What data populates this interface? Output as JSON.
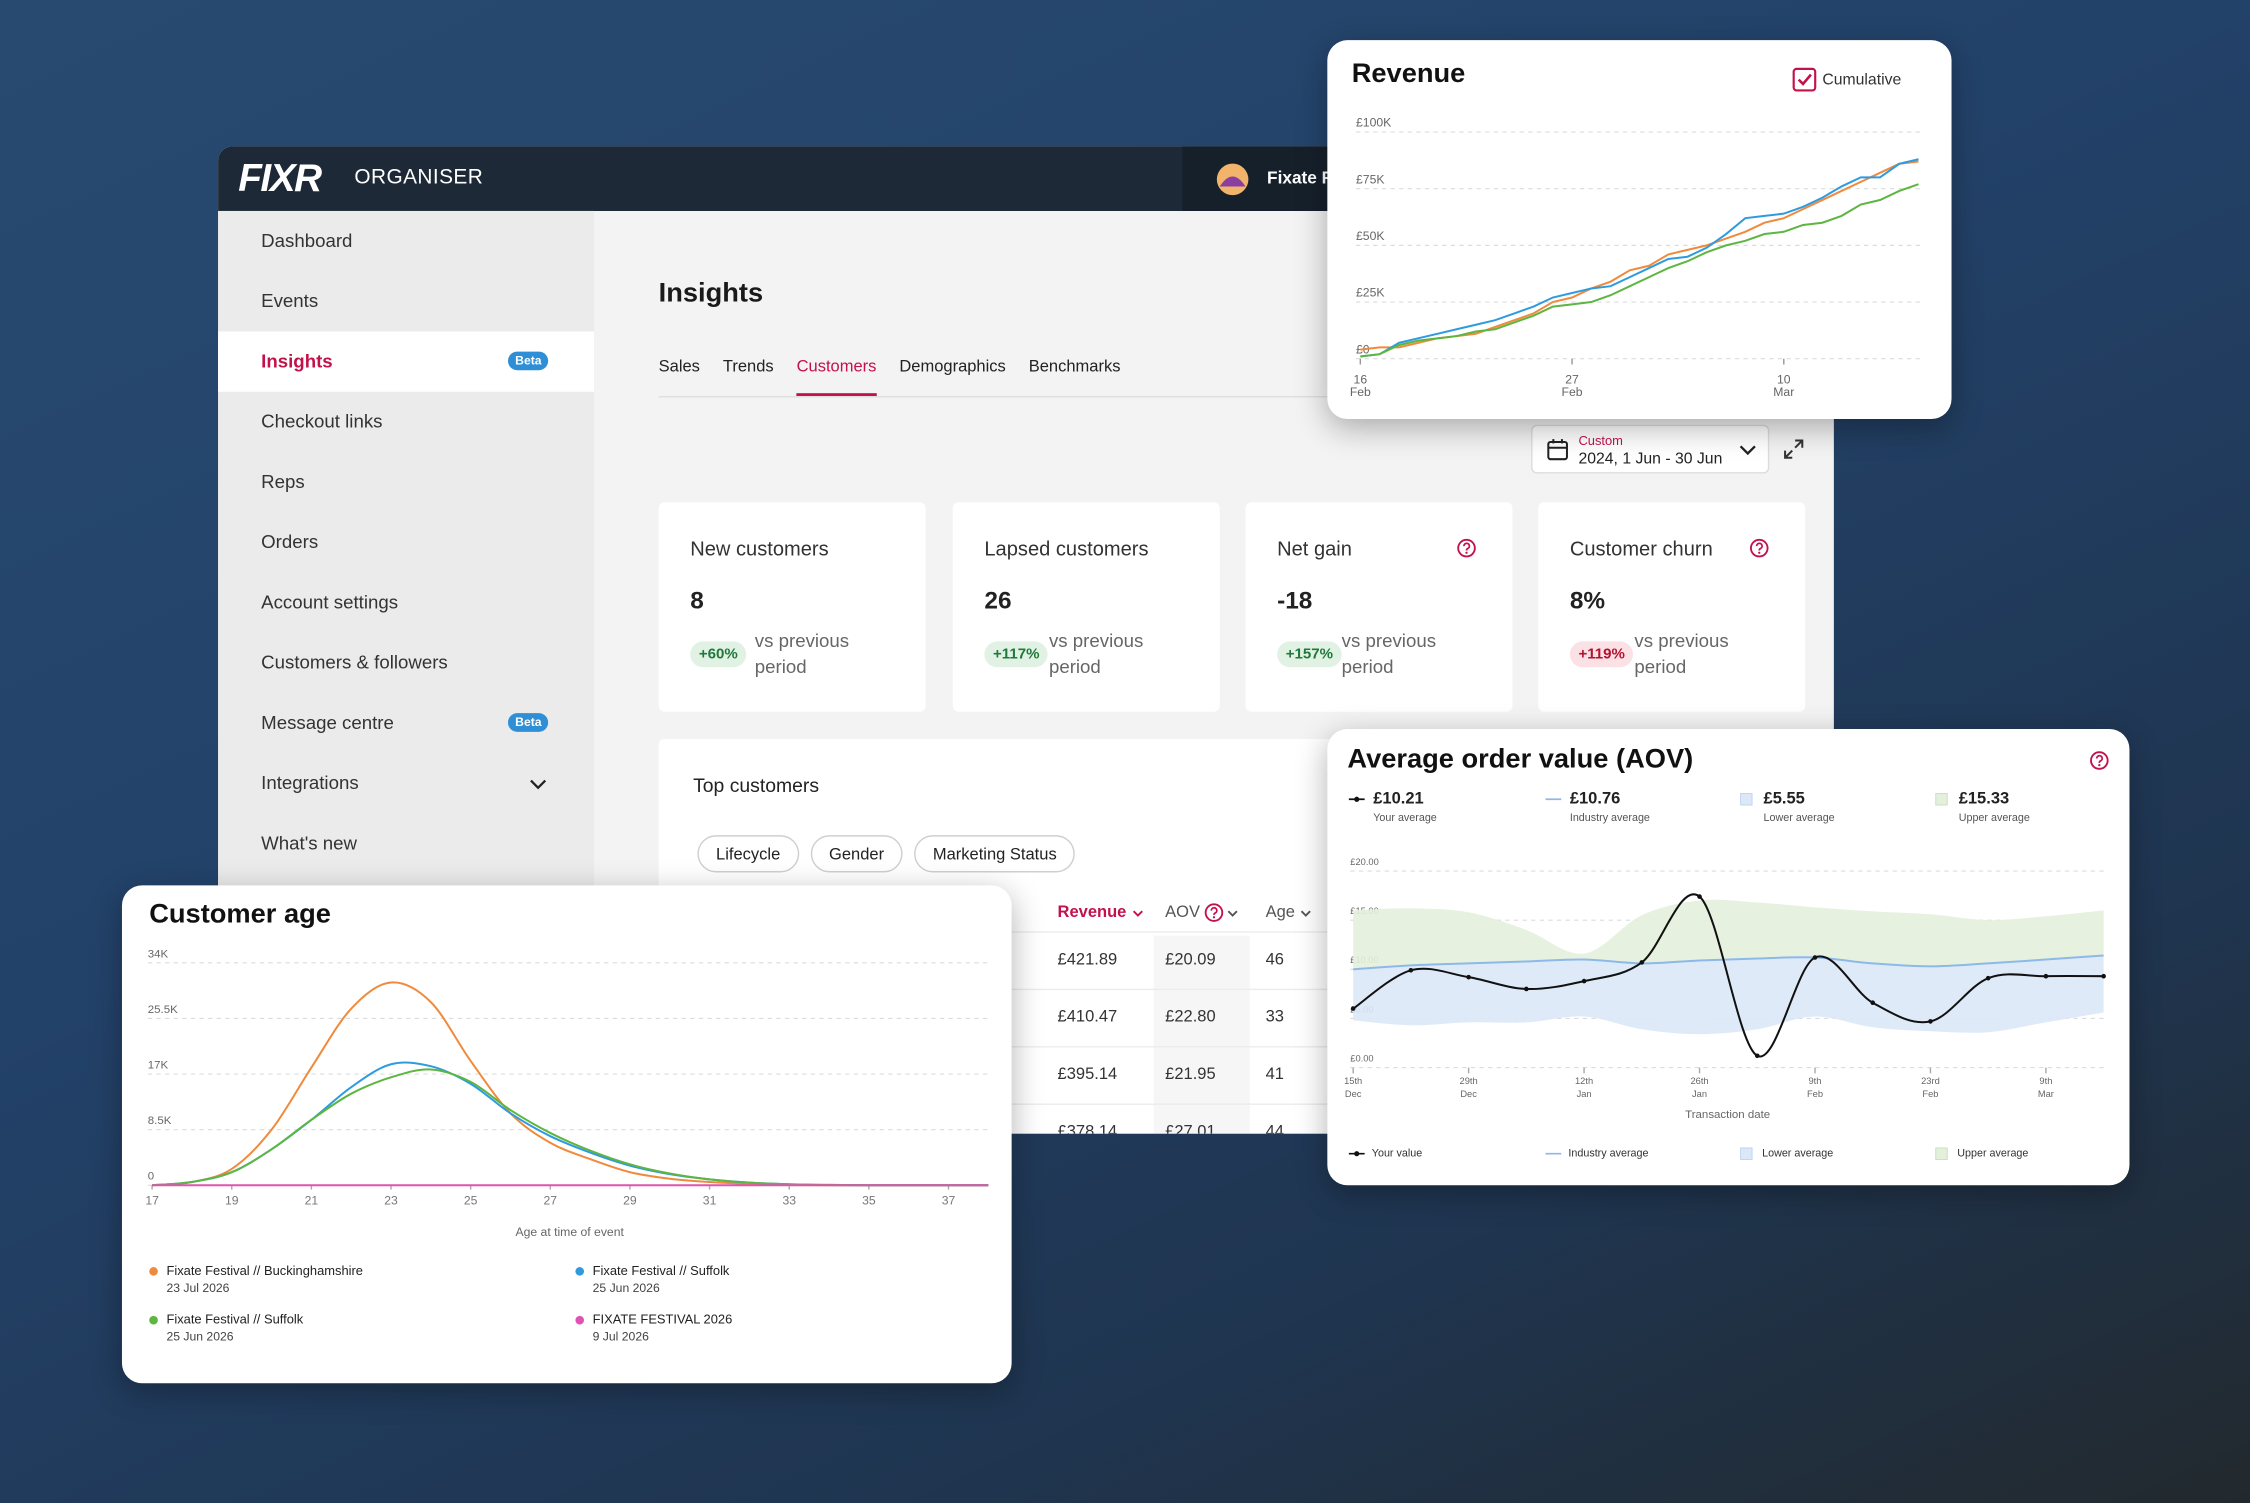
{
  "header": {
    "brand": "FIXR",
    "product": "ORGANISER",
    "account": "Fixate F"
  },
  "sidebar": {
    "items": [
      {
        "label": "Dashboard"
      },
      {
        "label": "Events"
      },
      {
        "label": "Insights",
        "badge": "Beta",
        "active": true
      },
      {
        "label": "Checkout links"
      },
      {
        "label": "Reps"
      },
      {
        "label": "Orders"
      },
      {
        "label": "Account settings"
      },
      {
        "label": "Customers & followers"
      },
      {
        "label": "Message centre",
        "badge": "Beta"
      },
      {
        "label": "Integrations",
        "expandable": true
      },
      {
        "label": "What's new"
      }
    ]
  },
  "page": {
    "title": "Insights",
    "tabs": [
      {
        "label": "Sales"
      },
      {
        "label": "Trends"
      },
      {
        "label": "Customers",
        "active": true
      },
      {
        "label": "Demographics"
      },
      {
        "label": "Benchmarks"
      }
    ],
    "date_range": {
      "label": "Custom",
      "value": "2024, 1 Jun - 30 Jun"
    },
    "metrics": [
      {
        "title": "New customers",
        "value": "8",
        "change": "+60%",
        "comparison": "vs previous period",
        "sentiment": "positive"
      },
      {
        "title": "Lapsed customers",
        "value": "26",
        "change": "+117%",
        "comparison": "vs previous period",
        "sentiment": "positive"
      },
      {
        "title": "Net gain",
        "value": "-18",
        "change": "+157%",
        "comparison": "vs previous period",
        "sentiment": "positive",
        "help": true
      },
      {
        "title": "Customer churn",
        "value": "8%",
        "change": "+119%",
        "comparison": "vs previous period",
        "sentiment": "negative",
        "help": true
      }
    ],
    "top_customers": {
      "title": "Top customers",
      "filters": [
        "Lifecycle",
        "Gender",
        "Marketing Status"
      ],
      "columns": [
        {
          "label": "Revenue",
          "sorted": true
        },
        {
          "label": "AOV",
          "info": true
        },
        {
          "label": "Age"
        }
      ],
      "rows": [
        [
          "£421.89",
          "£20.09",
          "46"
        ],
        [
          "£410.47",
          "£22.80",
          "33"
        ],
        [
          "£395.14",
          "£21.95",
          "41"
        ],
        [
          "£378.14",
          "£27.01",
          "44"
        ]
      ]
    }
  },
  "chart_data": [
    {
      "type": "line",
      "title": "Revenue",
      "toggle": {
        "label": "Cumulative",
        "checked": true
      },
      "categories": [
        "16 Feb",
        null,
        null,
        null,
        null,
        null,
        null,
        null,
        null,
        null,
        null,
        "27 Feb",
        null,
        null,
        null,
        null,
        null,
        null,
        null,
        null,
        null,
        null,
        "10 Mar",
        null,
        null,
        null,
        null,
        null,
        null,
        null
      ],
      "ylim": [
        0,
        100000
      ],
      "yticks": [
        {
          "value": 0,
          "label": "£0"
        },
        {
          "value": 25000,
          "label": "£25K"
        },
        {
          "value": 50000,
          "label": "£50K"
        },
        {
          "value": 75000,
          "label": "£75K"
        },
        {
          "value": 100000,
          "label": "£100K"
        }
      ],
      "grid": true,
      "series": [
        {
          "color": "#f08a3c",
          "values": [
            4000,
            5000,
            5000,
            7000,
            9000,
            10000,
            11000,
            14000,
            17000,
            20000,
            25000,
            27000,
            31000,
            34000,
            39000,
            41000,
            46000,
            48000,
            50000,
            53000,
            56000,
            60000,
            62000,
            66000,
            70000,
            74000,
            78000,
            82000,
            86000,
            87000
          ]
        },
        {
          "color": "#2e9be0",
          "values": [
            1000,
            2000,
            7000,
            9000,
            11000,
            13000,
            15000,
            17000,
            20000,
            23000,
            27000,
            29000,
            31000,
            32000,
            36000,
            40000,
            44000,
            45000,
            49000,
            55000,
            62000,
            63000,
            64000,
            67000,
            71000,
            76000,
            80000,
            80000,
            86000,
            88000
          ]
        },
        {
          "color": "#5db542",
          "values": [
            1000,
            2000,
            6000,
            8000,
            9000,
            10000,
            12000,
            13000,
            16000,
            19000,
            23000,
            24000,
            25000,
            28000,
            32000,
            36000,
            40000,
            43000,
            47000,
            50000,
            52000,
            55000,
            56000,
            59000,
            60000,
            63000,
            68000,
            70000,
            74000,
            77000
          ]
        }
      ]
    },
    {
      "type": "line",
      "title": "Customer age",
      "smooth": true,
      "xlabel": "Age at time of event",
      "x": [
        17,
        18,
        19,
        20,
        21,
        22,
        23,
        24,
        25,
        26,
        27,
        28,
        29,
        30,
        31,
        32,
        33,
        34,
        35,
        36,
        37,
        38
      ],
      "xlim": [
        17,
        38
      ],
      "xticks": [
        17,
        19,
        21,
        23,
        25,
        27,
        29,
        31,
        33,
        35,
        37
      ],
      "ylim": [
        0,
        34000
      ],
      "yticks": [
        0,
        {
          "value": 8500,
          "label": "8.5K"
        },
        {
          "value": 17000,
          "label": "17K"
        },
        {
          "value": 25500,
          "label": "25.5K"
        },
        {
          "value": 34000,
          "label": "34K"
        }
      ],
      "grid": true,
      "series": [
        {
          "name": "Fixate Festival // Buckinghamshire",
          "date": "23 Jul 2026",
          "color": "#f08a3c",
          "values": [
            0,
            500,
            2500,
            8500,
            18000,
            27000,
            31000,
            28000,
            19000,
            11000,
            6500,
            4000,
            2000,
            1000,
            500,
            200,
            50,
            0,
            0,
            0,
            0,
            0
          ]
        },
        {
          "name": "Fixate Festival // Suffolk",
          "date": "25 Jun 2026",
          "color": "#2e9be0",
          "values": [
            0,
            500,
            2000,
            5500,
            10000,
            15000,
            18500,
            18200,
            15500,
            11000,
            7500,
            5000,
            3000,
            1700,
            900,
            400,
            150,
            50,
            0,
            0,
            0,
            0
          ]
        },
        {
          "name": "Fixate Festival // Suffolk",
          "date": "25 Jun 2026",
          "color": "#5db542",
          "values": [
            0,
            500,
            2000,
            5500,
            10000,
            14000,
            16500,
            17700,
            15800,
            11500,
            8000,
            5300,
            3200,
            1800,
            900,
            400,
            150,
            50,
            0,
            0,
            0,
            0
          ]
        },
        {
          "name": "FIXATE FESTIVAL 2026",
          "date": "9 Jul 2026",
          "color": "#e052b4",
          "values": [
            0,
            0,
            0,
            0,
            0,
            0,
            0,
            0,
            0,
            0,
            0,
            0,
            0,
            0,
            0,
            0,
            0,
            0,
            0,
            0,
            0,
            0
          ]
        }
      ]
    },
    {
      "type": "band",
      "title": "Average order value (AOV)",
      "smooth": true,
      "xlabel": "Transaction date",
      "stats": [
        {
          "value": "£10.21",
          "label": "Your average"
        },
        {
          "value": "£10.76",
          "label": "Industry average"
        },
        {
          "value": "£5.55",
          "label": "Lower average"
        },
        {
          "value": "£15.33",
          "label": "Upper average"
        }
      ],
      "categories": [
        "15th Dec",
        null,
        "29th Dec",
        null,
        "12th Jan",
        null,
        "26th Jan",
        null,
        "9th Feb",
        null,
        "23rd Feb",
        null,
        "9th Mar",
        null
      ],
      "ylim": [
        0,
        20
      ],
      "yticks": [
        {
          "value": 0,
          "label": "£0.00"
        },
        {
          "value": 5,
          "label": "£5.00"
        },
        {
          "value": 10,
          "label": "£10.00"
        },
        {
          "value": 15,
          "label": "£15.00"
        },
        {
          "value": 20,
          "label": "£20.00"
        }
      ],
      "grid": true,
      "series": [
        {
          "name": "Your value",
          "color": "#111111",
          "values": [
            6.0,
            9.9,
            9.2,
            8.0,
            8.8,
            10.7,
            17.4,
            1.2,
            11.2,
            6.6,
            4.7,
            9.1,
            9.3,
            9.3
          ]
        },
        {
          "name": "Industry average",
          "color": "#8db9e8",
          "values": [
            10.0,
            10.4,
            10.6,
            10.8,
            11.0,
            10.6,
            10.9,
            11.1,
            11.2,
            10.6,
            10.3,
            10.6,
            11.0,
            11.4
          ]
        },
        {
          "name": "Lower average",
          "color": "#dce8f8",
          "values": [
            4.8,
            4.3,
            4.6,
            4.6,
            5.2,
            3.9,
            3.4,
            3.9,
            5.2,
            4.1,
            3.7,
            3.6,
            4.6,
            5.6
          ]
        },
        {
          "name": "Upper average",
          "color": "#e4efdc",
          "values": [
            16.0,
            16.2,
            15.8,
            14.0,
            11.6,
            15.5,
            17.0,
            16.8,
            16.3,
            15.9,
            15.6,
            15.0,
            15.4,
            16.0
          ]
        }
      ]
    }
  ]
}
